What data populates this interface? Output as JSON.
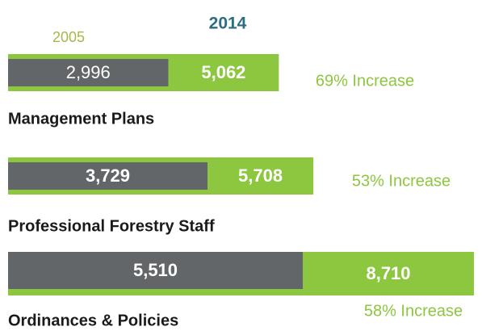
{
  "chart_data": {
    "type": "bar",
    "orientation": "horizontal",
    "categories": [
      "Management Plans",
      "Professional Forestry Staff",
      "Ordinances & Policies"
    ],
    "series": [
      {
        "name": "2005",
        "color": "#636669",
        "values": [
          2996,
          3729,
          5510
        ],
        "value_labels": [
          "2,996",
          "3,729",
          "5,510"
        ]
      },
      {
        "name": "2014",
        "color": "#8dc63f",
        "values": [
          5062,
          5708,
          8710
        ],
        "value_labels": [
          "5,062",
          "5,708",
          "8,710"
        ]
      }
    ],
    "annotations": [
      "69% Increase",
      "53% Increase",
      "58% Increase"
    ]
  }
}
